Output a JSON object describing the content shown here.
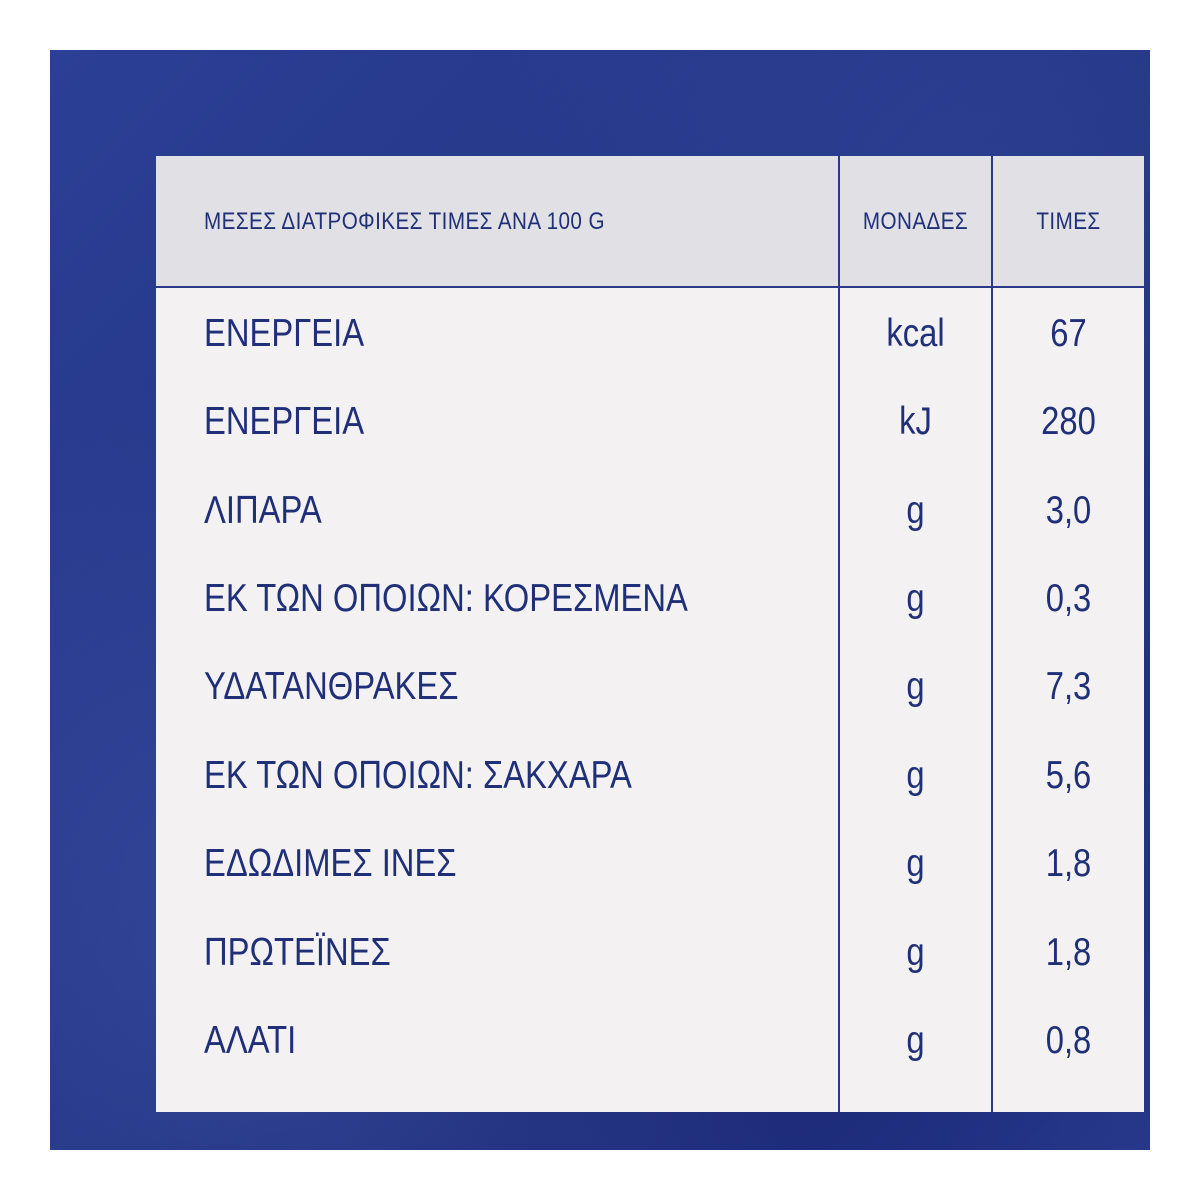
{
  "header": {
    "name_label": "ΜΕΣΕΣ ΔΙΑΤΡΟΦΙΚΕΣ ΤΙΜΕΣ ΑΝΑ 100 G",
    "unit_label": "ΜΟΝΑΔΕΣ",
    "value_label": "ΤΙΜΕΣ"
  },
  "rows": [
    {
      "name": "ΕΝΕΡΓΕΙΑ",
      "unit": "kcal",
      "value": "67"
    },
    {
      "name": "ΕΝΕΡΓΕΙΑ",
      "unit": "kJ",
      "value": "280"
    },
    {
      "name": "ΛΙΠΑΡΑ",
      "unit": "g",
      "value": "3,0"
    },
    {
      "name": "ΕΚ ΤΩΝ ΟΠΟΙΩΝ: ΚΟΡΕΣΜΕΝΑ",
      "unit": "g",
      "value": "0,3"
    },
    {
      "name": "ΥΔΑΤΑΝΘΡΑΚΕΣ",
      "unit": "g",
      "value": "7,3"
    },
    {
      "name": "ΕΚ ΤΩΝ ΟΠΟΙΩΝ: ΣΑΚΧΑΡΑ",
      "unit": "g",
      "value": "5,6"
    },
    {
      "name": "ΕΔΩΔΙΜΕΣ ΙΝΕΣ",
      "unit": "g",
      "value": "1,8"
    },
    {
      "name": "ΠΡΩΤΕΪΝΕΣ",
      "unit": "g",
      "value": "1,8"
    },
    {
      "name": "ΑΛΑΤΙ",
      "unit": "g",
      "value": "0,8"
    }
  ],
  "colors": {
    "background": "#233584",
    "table_body": "#f3f1f2",
    "table_header": "#e0e0e5",
    "text": "#1f2f78",
    "rules": "#2b3a88"
  }
}
